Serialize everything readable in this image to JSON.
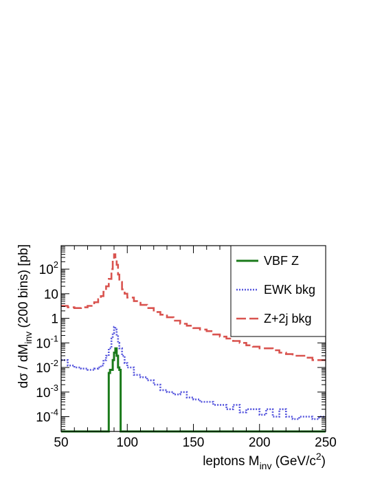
{
  "chart_data": {
    "type": "line",
    "step": true,
    "yscale": "log",
    "xlim": [
      50,
      250
    ],
    "ylim": [
      2.5e-05,
      900
    ],
    "x_ticks": [
      50,
      100,
      150,
      200,
      250
    ],
    "y_ticks": [
      {
        "value": 0.0001,
        "base": "10",
        "exp": "-4"
      },
      {
        "value": 0.001,
        "base": "10",
        "exp": "-3"
      },
      {
        "value": 0.01,
        "base": "10",
        "exp": "-2"
      },
      {
        "value": 0.1,
        "base": "10",
        "exp": "-1"
      },
      {
        "value": 1,
        "base": "1",
        "exp": ""
      },
      {
        "value": 10,
        "base": "10",
        "exp": ""
      },
      {
        "value": 100,
        "base": "10",
        "exp": "2"
      }
    ],
    "xlabel": {
      "main": "leptons M",
      "sub": "inv",
      "rest": " (GeV/c",
      "sup": "2",
      "end": ")"
    },
    "ylabel": {
      "main": "dσ / dM",
      "sub": "inv",
      "rest": " (200 bins) [pb]"
    },
    "legend_position": "top-right",
    "series": [
      {
        "name": "VBF Z",
        "color": "#1a7a1a",
        "style": "solid",
        "x": [
          50,
          86,
          86,
          87,
          88,
          89,
          90,
          91,
          92,
          93,
          94,
          95,
          95,
          250
        ],
        "y": [
          2.5e-05,
          2.5e-05,
          0.006,
          0.008,
          0.008,
          0.02,
          0.04,
          0.06,
          0.03,
          0.01,
          0.008,
          0.006,
          2.5e-05,
          2.5e-05
        ]
      },
      {
        "name": "EWK bkg",
        "color": "#5555dd",
        "style": "dotted",
        "x": [
          50,
          55,
          60,
          65,
          70,
          75,
          78,
          80,
          82,
          84,
          86,
          88,
          89,
          90,
          91,
          92,
          93,
          94,
          96,
          98,
          100,
          105,
          110,
          115,
          120,
          125,
          130,
          135,
          140,
          145,
          150,
          155,
          160,
          165,
          170,
          175,
          180,
          185,
          190,
          195,
          200,
          205,
          210,
          215,
          220,
          225,
          230,
          235,
          240,
          245,
          250
        ],
        "y": [
          0.02,
          0.012,
          0.01,
          0.009,
          0.008,
          0.009,
          0.01,
          0.012,
          0.02,
          0.03,
          0.06,
          0.15,
          0.25,
          0.45,
          0.35,
          0.2,
          0.1,
          0.06,
          0.03,
          0.015,
          0.01,
          0.005,
          0.004,
          0.003,
          0.002,
          0.0012,
          0.001,
          0.0008,
          0.001,
          0.0006,
          0.0005,
          0.0004,
          0.0004,
          0.0003,
          0.0003,
          0.0002,
          0.0003,
          0.00015,
          0.0002,
          0.0002,
          0.00012,
          0.0002,
          0.0001,
          0.0002,
          0.0001,
          8e-05,
          0.0001,
          0.0001,
          8e-05,
          0.0001,
          0.0001
        ]
      },
      {
        "name": "Z+2j bkg",
        "color": "#d9534f",
        "style": "dashed",
        "x": [
          50,
          55,
          60,
          65,
          70,
          75,
          78,
          80,
          82,
          84,
          86,
          88,
          89,
          90,
          91,
          92,
          93,
          94,
          96,
          98,
          100,
          105,
          110,
          115,
          120,
          125,
          130,
          135,
          140,
          145,
          150,
          155,
          160,
          165,
          170,
          175,
          180,
          185,
          190,
          195,
          200,
          205,
          210,
          215,
          220,
          225,
          230,
          235,
          240,
          245,
          250
        ],
        "y": [
          3.2,
          2.8,
          2.6,
          2.8,
          3.2,
          4.5,
          6,
          8,
          12,
          20,
          40,
          100,
          200,
          400,
          300,
          150,
          60,
          30,
          15,
          10,
          7,
          5,
          3.5,
          2.6,
          1.8,
          1.4,
          1.1,
          0.8,
          0.6,
          0.5,
          0.4,
          0.35,
          0.3,
          0.22,
          0.18,
          0.15,
          0.12,
          0.1,
          0.08,
          0.07,
          0.06,
          0.06,
          0.05,
          0.04,
          0.035,
          0.03,
          0.03,
          0.025,
          0.02,
          0.02,
          0.02
        ]
      }
    ]
  }
}
